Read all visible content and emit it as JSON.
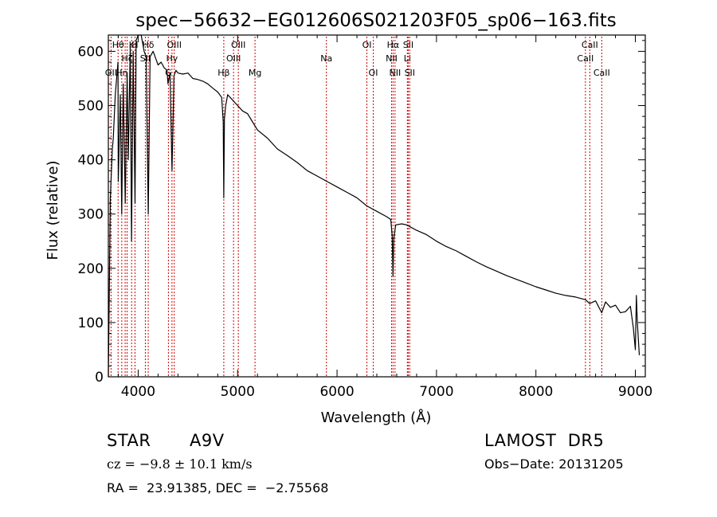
{
  "chart_data": {
    "type": "line",
    "title": "spec−56632−EG012606S021203F05_sp06−163.fits",
    "xlabel": "Wavelength (Å)",
    "ylabel": "Flux (relative)",
    "xlim": [
      3700,
      9100
    ],
    "ylim": [
      0,
      630
    ],
    "x_ticks": [
      4000,
      5000,
      6000,
      7000,
      8000,
      9000
    ],
    "x_tick_labels": [
      "4000",
      "5000",
      "6000",
      "7000",
      "8000",
      "9000"
    ],
    "y_ticks": [
      0,
      100,
      200,
      300,
      400,
      500,
      600
    ],
    "y_tick_labels": [
      "0",
      "100",
      "200",
      "300",
      "400",
      "500",
      "600"
    ],
    "grid": false,
    "series": [
      {
        "x": [
          3700,
          3720,
          3740,
          3750,
          3770,
          3797,
          3800,
          3820,
          3835,
          3850,
          3870,
          3889,
          3900,
          3920,
          3933,
          3950,
          3968,
          3980,
          4000,
          4030,
          4060,
          4080,
          4101,
          4120,
          4150,
          4180,
          4200,
          4230,
          4260,
          4290,
          4300,
          4320,
          4340,
          4360,
          4380,
          4400,
          4450,
          4500,
          4550,
          4600,
          4650,
          4700,
          4750,
          4800,
          4840,
          4855,
          4861,
          4867,
          4880,
          4900,
          4950,
          5000,
          5050,
          5100,
          5150,
          5200,
          5300,
          5400,
          5500,
          5600,
          5700,
          5800,
          5900,
          6000,
          6100,
          6200,
          6300,
          6400,
          6500,
          6540,
          6555,
          6563,
          6571,
          6590,
          6650,
          6700,
          6800,
          6900,
          7000,
          7100,
          7200,
          7300,
          7400,
          7500,
          7600,
          7700,
          7800,
          7900,
          8000,
          8100,
          8200,
          8300,
          8400,
          8500,
          8540,
          8600,
          8662,
          8700,
          8750,
          8800,
          8850,
          8900,
          8950,
          8980,
          9000,
          9010,
          9020,
          9040
        ],
        "y": [
          0,
          330,
          420,
          440,
          520,
          580,
          360,
          520,
          300,
          540,
          320,
          560,
          400,
          610,
          250,
          600,
          320,
          620,
          630,
          630,
          600,
          590,
          300,
          590,
          600,
          585,
          575,
          580,
          570,
          565,
          540,
          560,
          380,
          555,
          565,
          560,
          558,
          560,
          550,
          548,
          545,
          540,
          532,
          525,
          515,
          470,
          330,
          475,
          500,
          520,
          510,
          500,
          490,
          485,
          470,
          455,
          440,
          420,
          408,
          395,
          380,
          370,
          360,
          350,
          340,
          330,
          315,
          305,
          295,
          290,
          260,
          185,
          255,
          280,
          282,
          280,
          270,
          262,
          250,
          240,
          232,
          222,
          212,
          203,
          195,
          187,
          180,
          173,
          166,
          160,
          154,
          150,
          147,
          142,
          135,
          140,
          118,
          138,
          128,
          132,
          118,
          120,
          130,
          90,
          50,
          150,
          100,
          40
        ]
      }
    ],
    "lines": [
      {
        "x": 3727,
        "label": "OII",
        "row": 3
      },
      {
        "x": 3798,
        "label": "Hθ",
        "row": 1
      },
      {
        "x": 3835,
        "label": "Hη",
        "row": 3
      },
      {
        "x": 3869,
        "label": "",
        "row": 0
      },
      {
        "x": 3889,
        "label": "Hζ",
        "row": 2
      },
      {
        "x": 3934,
        "label": "K",
        "row": 1
      },
      {
        "x": 3968,
        "label": "H",
        "row": 1
      },
      {
        "x": 4101,
        "label": "Hδ",
        "row": 1
      },
      {
        "x": 4072,
        "label": "SII",
        "row": 2
      },
      {
        "x": 4304,
        "label": "G",
        "row": 3
      },
      {
        "x": 4340,
        "label": "Hγ",
        "row": 2
      },
      {
        "x": 4363,
        "label": "OIII",
        "row": 1
      },
      {
        "x": 4861,
        "label": "Hβ",
        "row": 3
      },
      {
        "x": 4959,
        "label": "OIII",
        "row": 2
      },
      {
        "x": 5007,
        "label": "OIII",
        "row": 1
      },
      {
        "x": 5175,
        "label": "Mg",
        "row": 3
      },
      {
        "x": 5893,
        "label": "Na",
        "row": 2
      },
      {
        "x": 6300,
        "label": "OI",
        "row": 1
      },
      {
        "x": 6364,
        "label": "OI",
        "row": 3
      },
      {
        "x": 6548,
        "label": "NII",
        "row": 2
      },
      {
        "x": 6563,
        "label": "Hα",
        "row": 1
      },
      {
        "x": 6583,
        "label": "NII",
        "row": 3
      },
      {
        "x": 6707,
        "label": "Li",
        "row": 2
      },
      {
        "x": 6716,
        "label": "SII",
        "row": 1
      },
      {
        "x": 6731,
        "label": "SII",
        "row": 3
      },
      {
        "x": 8498,
        "label": "CaII",
        "row": 2
      },
      {
        "x": 8542,
        "label": "CaII",
        "row": 1
      },
      {
        "x": 8662,
        "label": "CaII",
        "row": 3
      }
    ]
  },
  "info": {
    "object_class": "STAR",
    "subclass": "A9V",
    "survey": "LAMOST  DR5",
    "redshift": "cz = −9.8 ± 10.1 km/s",
    "obs_date": "Obs−Date: 20131205",
    "coords": "RA =  23.91385, DEC =  −2.75568"
  }
}
